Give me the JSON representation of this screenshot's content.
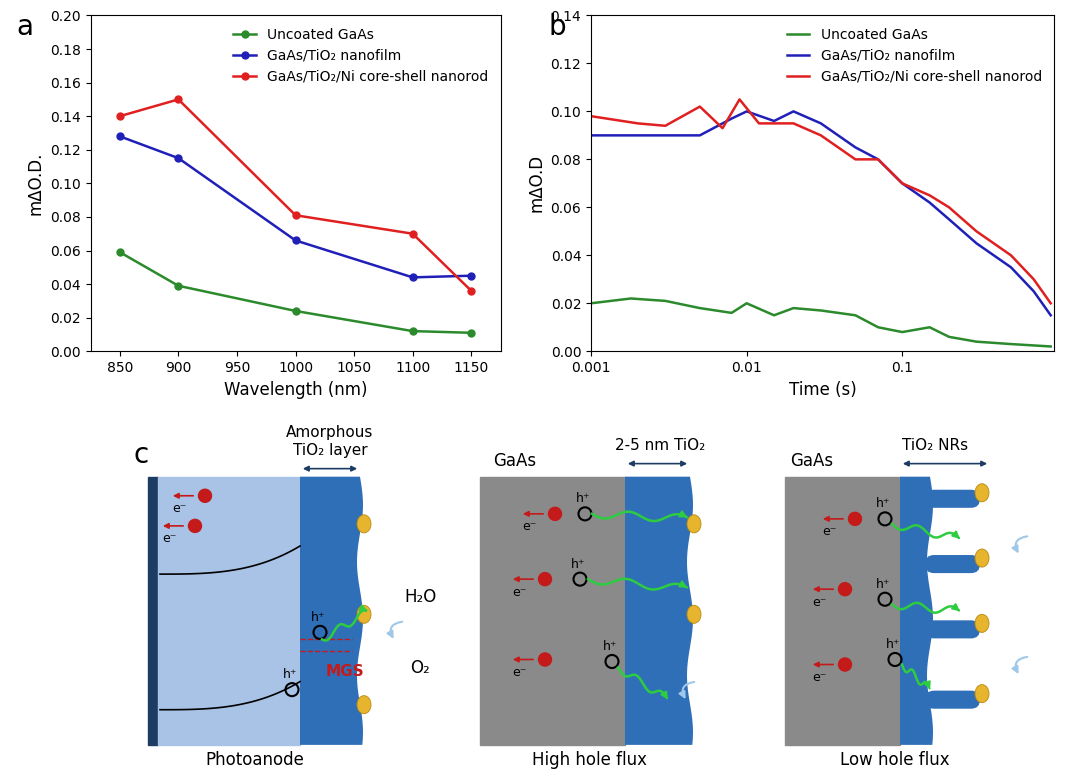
{
  "chart_data": [
    {
      "type": "line",
      "panel_label": "a",
      "xlabel": "Wavelength (nm)",
      "ylabel": "mΔO.D.",
      "x": [
        850,
        900,
        1000,
        1100,
        1150
      ],
      "series": [
        {
          "name": "Uncoated GaAs",
          "color": "#2b8a2b",
          "values": [
            0.059,
            0.039,
            0.024,
            0.012,
            0.011
          ]
        },
        {
          "name": "GaAs/TiO₂ nanofilm",
          "color": "#2020b8",
          "values": [
            0.128,
            0.115,
            0.066,
            0.044,
            0.045
          ]
        },
        {
          "name": "GaAs/TiO₂/Ni core-shell nanorod",
          "color": "#e02020",
          "values": [
            0.14,
            0.15,
            0.081,
            0.07,
            0.036
          ]
        }
      ],
      "marker": "o",
      "line_style": "solid",
      "legend": "upper right",
      "xlim": [
        825,
        1175
      ],
      "xticks": [
        850,
        900,
        950,
        1000,
        1050,
        1100,
        1150
      ],
      "ylim": [
        0,
        0.2
      ],
      "yticks": [
        {
          "value": 0,
          "label": "0.00"
        },
        {
          "value": 0.02,
          "label": "0.02"
        },
        {
          "value": 0.04,
          "label": "0.04"
        },
        {
          "value": 0.06,
          "label": "0.06"
        },
        {
          "value": 0.08,
          "label": "0.08"
        },
        {
          "value": 0.1,
          "label": "0.10"
        },
        {
          "value": 0.12,
          "label": "0.12"
        },
        {
          "value": 0.14,
          "label": "0.14"
        },
        {
          "value": 0.16,
          "label": "0.16"
        },
        {
          "value": 0.18,
          "label": "0.18"
        },
        {
          "value": 0.2,
          "label": "0.20"
        }
      ]
    },
    {
      "type": "line",
      "panel_label": "b",
      "xlabel": "Time (s)",
      "ylabel": "mΔO.D",
      "log": "x",
      "legend": "upper right",
      "line_style": "solid",
      "series": [
        {
          "name": "Uncoated GaAs",
          "color": "#2b8a2b",
          "x": [
            0.001,
            0.0018,
            0.003,
            0.005,
            0.008,
            0.01,
            0.015,
            0.02,
            0.03,
            0.05,
            0.07,
            0.1,
            0.15,
            0.2,
            0.3,
            0.5,
            0.9
          ],
          "values": [
            0.02,
            0.022,
            0.021,
            0.018,
            0.016,
            0.02,
            0.015,
            0.018,
            0.017,
            0.015,
            0.01,
            0.008,
            0.01,
            0.006,
            0.004,
            0.003,
            0.002
          ]
        },
        {
          "name": "GaAs/TiO₂ nanofilm",
          "color": "#2020b8",
          "x": [
            0.001,
            0.003,
            0.005,
            0.008,
            0.01,
            0.015,
            0.02,
            0.03,
            0.05,
            0.07,
            0.1,
            0.15,
            0.2,
            0.3,
            0.5,
            0.7,
            0.9
          ],
          "values": [
            0.09,
            0.09,
            0.09,
            0.097,
            0.1,
            0.096,
            0.1,
            0.095,
            0.085,
            0.08,
            0.07,
            0.062,
            0.055,
            0.045,
            0.035,
            0.025,
            0.015
          ]
        },
        {
          "name": "GaAs/TiO₂/Ni core-shell nanorod",
          "color": "#e02020",
          "x": [
            0.001,
            0.002,
            0.003,
            0.005,
            0.007,
            0.009,
            0.012,
            0.02,
            0.03,
            0.05,
            0.07,
            0.1,
            0.15,
            0.2,
            0.3,
            0.5,
            0.7,
            0.9
          ],
          "values": [
            0.098,
            0.095,
            0.094,
            0.102,
            0.093,
            0.105,
            0.095,
            0.095,
            0.09,
            0.08,
            0.08,
            0.07,
            0.065,
            0.06,
            0.05,
            0.04,
            0.03,
            0.02
          ]
        }
      ],
      "xlim": [
        0.001,
        0.95
      ],
      "xticks": [
        0.001,
        0.01,
        0.1
      ],
      "ylim": [
        0,
        0.14
      ],
      "yticks": [
        {
          "value": 0,
          "label": "0.00"
        },
        {
          "value": 0.02,
          "label": "0.02"
        },
        {
          "value": 0.04,
          "label": "0.04"
        },
        {
          "value": 0.06,
          "label": "0.06"
        },
        {
          "value": 0.08,
          "label": "0.08"
        },
        {
          "value": 0.1,
          "label": "0.10"
        },
        {
          "value": 0.12,
          "label": "0.12"
        },
        {
          "value": 0.14,
          "label": "0.14"
        }
      ]
    }
  ],
  "diagram": {
    "panel_label": "c",
    "electron_label": "e⁻",
    "hole_label": "h⁺",
    "panels": [
      {
        "caption": "Photoanode",
        "layer_label": "Amorphous TiO₂ layer",
        "trap_label": "MGS",
        "water_label": "H₂O",
        "oxygen_label": "O₂"
      },
      {
        "caption": "High hole flux",
        "substrate_label": "GaAs",
        "layer_label": "2-5 nm TiO₂"
      },
      {
        "caption": "Low hole flux",
        "substrate_label": "GaAs",
        "layer_label": "TiO₂ NRs"
      }
    ]
  }
}
